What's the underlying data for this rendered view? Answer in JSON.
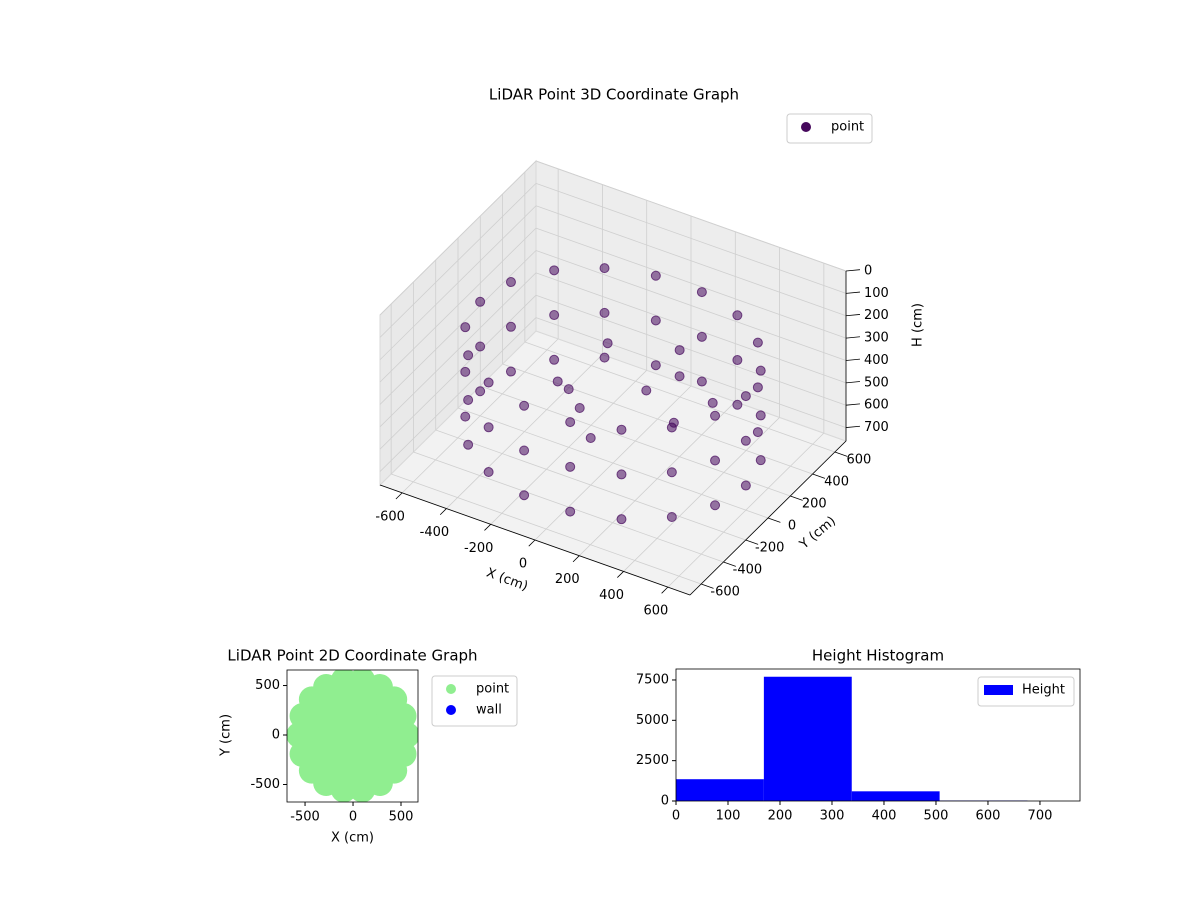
{
  "chart_data": [
    {
      "type": "scatter3d",
      "title": "LiDAR Point 3D Coordinate Graph",
      "xlabel": "X (cm)",
      "ylabel": "Y (cm)",
      "zlabel": "H (cm)",
      "series": [
        {
          "name": "point",
          "color": "#46085c",
          "x": [
            600,
            564,
            460,
            300,
            104,
            -104,
            -300,
            -460,
            -564,
            -600,
            -564,
            -460,
            -300,
            -104,
            104,
            300,
            460,
            564,
            600,
            564,
            460,
            300,
            104,
            -104,
            -300,
            -460,
            -564,
            -600,
            -564,
            -460,
            -300,
            -104,
            104,
            300,
            460,
            564,
            600,
            564,
            460,
            300,
            104,
            -104,
            -300,
            -460,
            -564,
            -600,
            -564,
            -460,
            -300,
            -104,
            104,
            300,
            460,
            564,
            -200,
            -100,
            100,
            200,
            -300,
            0,
            300,
            400,
            150,
            -150
          ],
          "y": [
            0,
            205,
            386,
            520,
            591,
            591,
            520,
            386,
            205,
            0,
            -205,
            -386,
            -520,
            -591,
            -591,
            -520,
            -386,
            -205,
            0,
            205,
            386,
            520,
            591,
            591,
            520,
            386,
            205,
            0,
            -205,
            -386,
            -520,
            -591,
            -591,
            -520,
            -386,
            -205,
            0,
            205,
            386,
            520,
            591,
            591,
            520,
            386,
            205,
            0,
            -205,
            -386,
            -520,
            -591,
            -591,
            -520,
            -386,
            -205,
            0,
            -100,
            100,
            200,
            100,
            -200,
            -50,
            100,
            300,
            250
          ],
          "z": [
            250,
            250,
            250,
            250,
            250,
            250,
            250,
            250,
            250,
            250,
            250,
            250,
            250,
            250,
            250,
            250,
            250,
            250,
            450,
            450,
            450,
            450,
            450,
            450,
            450,
            450,
            450,
            450,
            450,
            450,
            450,
            450,
            450,
            450,
            450,
            450,
            650,
            650,
            650,
            650,
            650,
            650,
            650,
            650,
            650,
            650,
            650,
            650,
            650,
            650,
            650,
            650,
            650,
            650,
            500,
            500,
            450,
            400,
            550,
            550,
            450,
            400,
            350,
            400
          ]
        }
      ],
      "xlim": [
        -700,
        700
      ],
      "ylim": [
        -700,
        700
      ],
      "zlim": [
        0,
        760
      ],
      "z_inverted": true,
      "xticks": [
        -600,
        -400,
        -200,
        0,
        200,
        400,
        600
      ],
      "yticks": [
        -600,
        -400,
        -200,
        0,
        200,
        400,
        600
      ],
      "zticks": [
        0,
        100,
        200,
        300,
        400,
        500,
        600,
        700
      ],
      "grid": true,
      "legend": "upper right"
    },
    {
      "type": "scatter",
      "title": "LiDAR Point 2D Coordinate Graph",
      "xlabel": "X (cm)",
      "ylabel": "Y (cm)",
      "series": [
        {
          "name": "point",
          "color": "#90ee90",
          "x": [
            0,
            190,
            95,
            -95,
            -190,
            -95,
            95,
            380,
            329,
            190,
            0,
            -190,
            -329,
            -380,
            -329,
            -190,
            0,
            190,
            329,
            560,
            526,
            429,
            280,
            97,
            -97,
            -280,
            -429,
            -526,
            -560,
            -526,
            -429,
            -280,
            -97,
            97,
            280,
            429,
            526
          ],
          "y": [
            0,
            0,
            165,
            165,
            0,
            -165,
            -165,
            0,
            190,
            329,
            380,
            329,
            190,
            0,
            -190,
            -329,
            -380,
            -329,
            -190,
            0,
            192,
            360,
            485,
            551,
            551,
            485,
            360,
            192,
            0,
            -192,
            -360,
            -485,
            -551,
            -551,
            -485,
            -360,
            -192
          ]
        },
        {
          "name": "wall",
          "color": "#0000ff",
          "x": [],
          "y": []
        }
      ],
      "xlim": [
        -688,
        677
      ],
      "ylim": [
        -677,
        657
      ],
      "xticks": [
        -500,
        0,
        500
      ],
      "yticks": [
        -500,
        0,
        500
      ],
      "legend": "outside upper right"
    },
    {
      "type": "histogram",
      "title": "Height Histogram",
      "bins": [
        0,
        169,
        338,
        507,
        676
      ],
      "series": [
        {
          "name": "Height",
          "color": "#0000ff",
          "values": [
            1350,
            7700,
            600,
            30
          ]
        }
      ],
      "xlim": [
        0,
        777
      ],
      "ylim": [
        0,
        8180
      ],
      "xticks": [
        0,
        100,
        200,
        300,
        400,
        500,
        600,
        700
      ],
      "yticks": [
        0,
        2500,
        5000,
        7500
      ],
      "legend": "upper right"
    }
  ]
}
